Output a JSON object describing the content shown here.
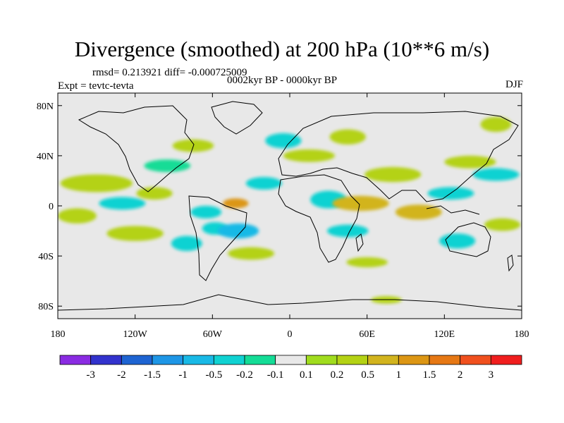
{
  "chart_data": {
    "type": "heatmap",
    "title": "Divergence (smoothed) at 200 hPa (10**6 m/s)",
    "stats_label": "rmsd= 0.213921 diff= -0.000725009",
    "period_label": "0002kyr BP - 0000kyr BP",
    "experiment_label": "Expt = tevtc-tevta",
    "season_label": "DJF",
    "xlim": [
      -180,
      180
    ],
    "ylim": [
      -90,
      90
    ],
    "x_ticks": [
      {
        "value": -180,
        "label": "180"
      },
      {
        "value": -120,
        "label": "120W"
      },
      {
        "value": -60,
        "label": "60W"
      },
      {
        "value": 0,
        "label": "0"
      },
      {
        "value": 60,
        "label": "60E"
      },
      {
        "value": 120,
        "label": "120E"
      },
      {
        "value": 180,
        "label": "180"
      }
    ],
    "y_ticks": [
      {
        "value": 80,
        "label": "80N"
      },
      {
        "value": 40,
        "label": "40N"
      },
      {
        "value": 0,
        "label": "0"
      },
      {
        "value": -40,
        "label": "40S"
      },
      {
        "value": -80,
        "label": "80S"
      }
    ],
    "colorbar": {
      "colors": [
        "#8a2be2",
        "#3232cd",
        "#1e64d2",
        "#1e96e6",
        "#19b9e6",
        "#10d2d2",
        "#14dc96",
        "#e8e8e8",
        "#a0dc1e",
        "#b4d214",
        "#d2b41e",
        "#dc9614",
        "#e67814",
        "#f0501e",
        "#f01e1e"
      ],
      "boundaries": [
        "-3",
        "-2",
        "-1.5",
        "-1",
        "-0.5",
        "-0.2",
        "-0.1",
        "0.1",
        "0.2",
        "0.5",
        "1",
        "1.5",
        "2",
        "3"
      ]
    },
    "anomaly_regions": [
      {
        "lon": -150,
        "lat": 18,
        "rx": 28,
        "ry": 7,
        "value": 0.3
      },
      {
        "lon": -165,
        "lat": -8,
        "rx": 15,
        "ry": 6,
        "value": 0.3
      },
      {
        "lon": -130,
        "lat": 2,
        "rx": 18,
        "ry": 5,
        "value": -0.3
      },
      {
        "lon": -120,
        "lat": -22,
        "rx": 22,
        "ry": 6,
        "value": 0.4
      },
      {
        "lon": -95,
        "lat": 32,
        "rx": 18,
        "ry": 5,
        "value": -0.2
      },
      {
        "lon": -75,
        "lat": 48,
        "rx": 16,
        "ry": 5,
        "value": 0.2
      },
      {
        "lon": -105,
        "lat": 10,
        "rx": 14,
        "ry": 5,
        "value": 0.3
      },
      {
        "lon": -65,
        "lat": -5,
        "rx": 12,
        "ry": 5,
        "value": -0.5
      },
      {
        "lon": -42,
        "lat": 2,
        "rx": 10,
        "ry": 4,
        "value": 1.2
      },
      {
        "lon": -58,
        "lat": -18,
        "rx": 10,
        "ry": 5,
        "value": -0.4
      },
      {
        "lon": -80,
        "lat": -30,
        "rx": 12,
        "ry": 6,
        "value": -0.3
      },
      {
        "lon": -40,
        "lat": -20,
        "rx": 16,
        "ry": 6,
        "value": -0.6
      },
      {
        "lon": -30,
        "lat": -38,
        "rx": 18,
        "ry": 5,
        "value": 0.4
      },
      {
        "lon": -20,
        "lat": 18,
        "rx": 14,
        "ry": 5,
        "value": -0.3
      },
      {
        "lon": -5,
        "lat": 52,
        "rx": 14,
        "ry": 6,
        "value": -0.3
      },
      {
        "lon": 15,
        "lat": 40,
        "rx": 20,
        "ry": 5,
        "value": 0.4
      },
      {
        "lon": 30,
        "lat": 5,
        "rx": 14,
        "ry": 7,
        "value": -0.5
      },
      {
        "lon": 55,
        "lat": 2,
        "rx": 22,
        "ry": 6,
        "value": 0.6
      },
      {
        "lon": 45,
        "lat": -20,
        "rx": 16,
        "ry": 5,
        "value": -0.4
      },
      {
        "lon": 45,
        "lat": 55,
        "rx": 14,
        "ry": 6,
        "value": 0.2
      },
      {
        "lon": 80,
        "lat": 25,
        "rx": 22,
        "ry": 6,
        "value": 0.4
      },
      {
        "lon": 100,
        "lat": -5,
        "rx": 18,
        "ry": 6,
        "value": 0.6
      },
      {
        "lon": 125,
        "lat": 10,
        "rx": 18,
        "ry": 5,
        "value": -0.4
      },
      {
        "lon": 140,
        "lat": 35,
        "rx": 20,
        "ry": 5,
        "value": 0.3
      },
      {
        "lon": 160,
        "lat": 25,
        "rx": 18,
        "ry": 5,
        "value": -0.3
      },
      {
        "lon": 130,
        "lat": -28,
        "rx": 14,
        "ry": 6,
        "value": -0.5
      },
      {
        "lon": 165,
        "lat": -15,
        "rx": 14,
        "ry": 5,
        "value": 0.3
      },
      {
        "lon": 160,
        "lat": 65,
        "rx": 12,
        "ry": 6,
        "value": 0.2
      },
      {
        "lon": 60,
        "lat": -45,
        "rx": 16,
        "ry": 4,
        "value": 0.2
      },
      {
        "lon": 75,
        "lat": -75,
        "rx": 12,
        "ry": 3,
        "value": 0.2
      }
    ]
  }
}
